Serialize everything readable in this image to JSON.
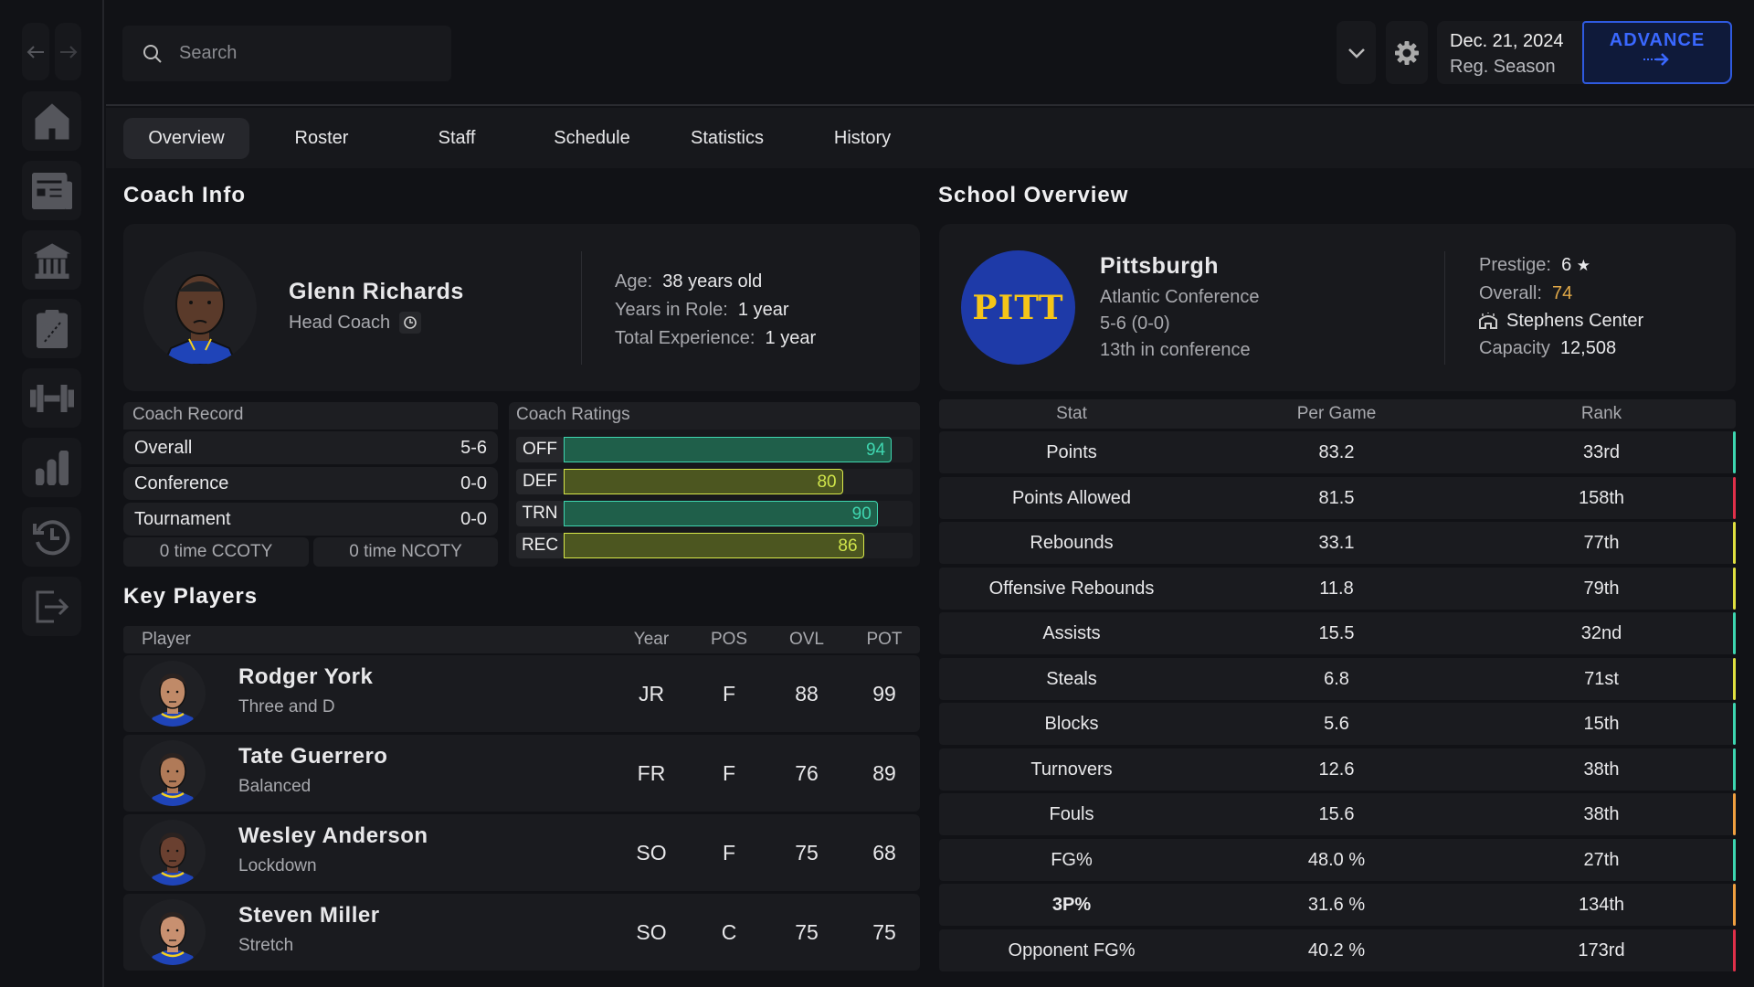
{
  "nav": {
    "items": [
      "back",
      "forward",
      "home",
      "news",
      "school",
      "tactics",
      "training",
      "stats",
      "history",
      "exit"
    ]
  },
  "search": {
    "placeholder": "Search"
  },
  "header": {
    "date": "Dec. 21, 2024",
    "phase": "Reg. Season",
    "advance_label": "ADVANCE",
    "accent": "#2f5ae0"
  },
  "tabs": [
    "Overview",
    "Roster",
    "Staff",
    "Schedule",
    "Statistics",
    "History"
  ],
  "coach": {
    "section_title": "Coach Info",
    "name": "Glenn Richards",
    "role": "Head Coach",
    "age_label": "Age:",
    "age": "38 years old",
    "years_label": "Years in Role:",
    "years": "1 year",
    "exp_label": "Total Experience:",
    "exp": "1 year",
    "record": {
      "title": "Coach Record",
      "rows": [
        {
          "label": "Overall",
          "value": "5-6"
        },
        {
          "label": "Conference",
          "value": "0-0"
        },
        {
          "label": "Tournament",
          "value": "0-0"
        }
      ],
      "ccoty": "0 time CCOTY",
      "ncoty": "0 time NCOTY"
    },
    "ratings": {
      "title": "Coach Ratings",
      "rows": [
        {
          "label": "OFF",
          "value": 94,
          "color": "teal"
        },
        {
          "label": "DEF",
          "value": 80,
          "color": "yellow"
        },
        {
          "label": "TRN",
          "value": 90,
          "color": "teal"
        },
        {
          "label": "REC",
          "value": 86,
          "color": "yellow"
        }
      ]
    }
  },
  "players": {
    "section_title": "Key Players",
    "headers": {
      "player": "Player",
      "year": "Year",
      "pos": "POS",
      "ovl": "OVL",
      "pot": "POT"
    },
    "rows": [
      {
        "name": "Rodger York",
        "arch": "Three and D",
        "year": "JR",
        "pos": "F",
        "ovl": "88",
        "pot": "99"
      },
      {
        "name": "Tate Guerrero",
        "arch": "Balanced",
        "year": "FR",
        "pos": "F",
        "ovl": "76",
        "pot": "89"
      },
      {
        "name": "Wesley Anderson",
        "arch": "Lockdown",
        "year": "SO",
        "pos": "F",
        "ovl": "75",
        "pot": "68"
      },
      {
        "name": "Steven Miller",
        "arch": "Stretch",
        "year": "SO",
        "pos": "C",
        "ovl": "75",
        "pot": "75"
      }
    ]
  },
  "school": {
    "section_title": "School Overview",
    "logo_text": "PITT",
    "name": "Pittsburgh",
    "conference": "Atlantic Conference",
    "record": "5-6 (0-0)",
    "standing": "13th in conference",
    "prestige_label": "Prestige:",
    "prestige": "6",
    "overall_label": "Overall:",
    "overall": "74",
    "arena": "Stephens Center",
    "capacity_label": "Capacity",
    "capacity": "12,508",
    "colors": {
      "primary": "#1e3aa8",
      "secondary": "#f5c518"
    }
  },
  "stats": {
    "headers": {
      "stat": "Stat",
      "per_game": "Per Game",
      "rank": "Rank"
    },
    "rows": [
      {
        "stat": "Points",
        "per_game": "83.2",
        "rank": "33rd",
        "tier": "teal"
      },
      {
        "stat": "Points Allowed",
        "per_game": "81.5",
        "rank": "158th",
        "tier": "red"
      },
      {
        "stat": "Rebounds",
        "per_game": "33.1",
        "rank": "77th",
        "tier": "yellow"
      },
      {
        "stat": "Offensive Rebounds",
        "per_game": "11.8",
        "rank": "79th",
        "tier": "yellow"
      },
      {
        "stat": "Assists",
        "per_game": "15.5",
        "rank": "32nd",
        "tier": "teal"
      },
      {
        "stat": "Steals",
        "per_game": "6.8",
        "rank": "71st",
        "tier": "yellow"
      },
      {
        "stat": "Blocks",
        "per_game": "5.6",
        "rank": "15th",
        "tier": "teal"
      },
      {
        "stat": "Turnovers",
        "per_game": "12.6",
        "rank": "38th",
        "tier": "teal"
      },
      {
        "stat": "Fouls",
        "per_game": "15.6",
        "rank": "38th",
        "tier": "orange"
      },
      {
        "stat": "FG%",
        "per_game": "48.0 %",
        "rank": "27th",
        "tier": "teal"
      },
      {
        "stat": "3P%",
        "per_game": "31.6 %",
        "rank": "134th",
        "tier": "orange"
      },
      {
        "stat": "Opponent FG%",
        "per_game": "40.2 %",
        "rank": "173rd",
        "tier": "red"
      }
    ],
    "tier_colors": {
      "teal": "#3dd6b0",
      "red": "#e0304a",
      "yellow": "#e0e040",
      "orange": "#f0a040"
    }
  }
}
